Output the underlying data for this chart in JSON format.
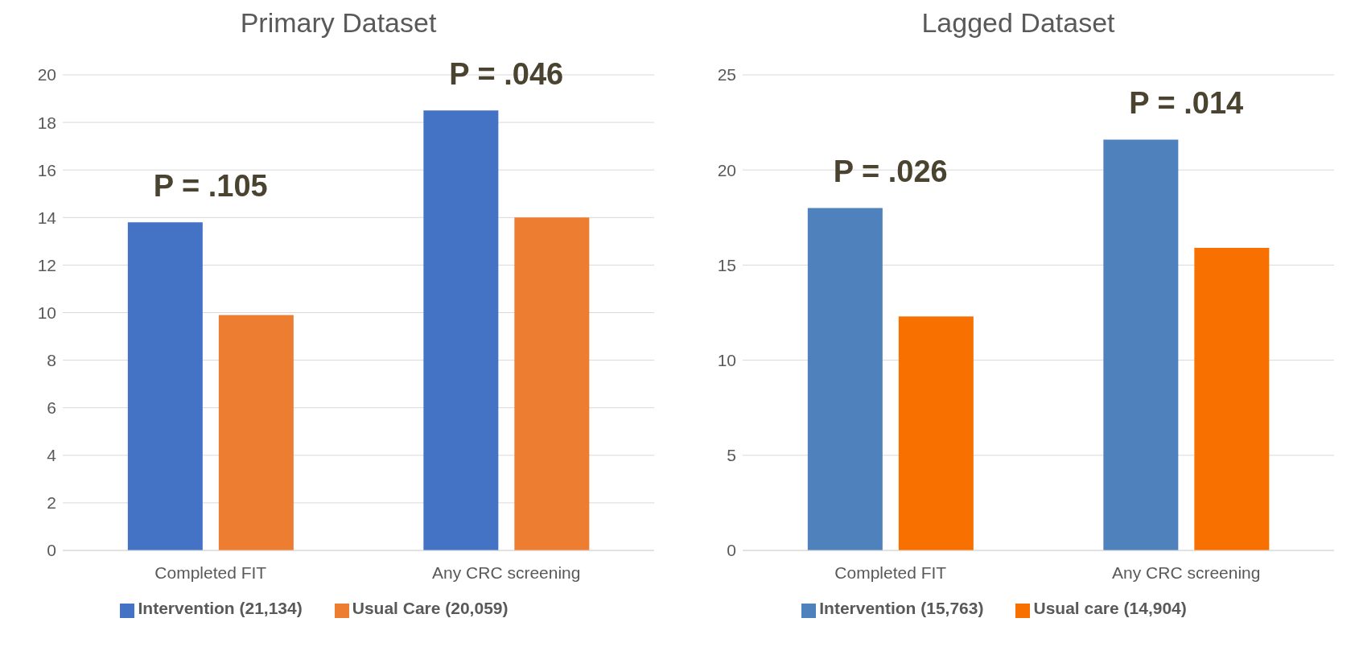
{
  "chart_data": [
    {
      "type": "bar",
      "title": "Primary Dataset",
      "categories": [
        "Completed FIT",
        "Any CRC screening"
      ],
      "series": [
        {
          "name": "Intervention (21,134)",
          "color": "#4472c4",
          "values": [
            13.8,
            18.5
          ]
        },
        {
          "name": "Usual Care (20,059)",
          "color": "#ed7d31",
          "values": [
            9.9,
            14.0
          ]
        }
      ],
      "ylim": [
        0,
        20
      ],
      "yticks": [
        0,
        2,
        4,
        6,
        8,
        10,
        12,
        14,
        16,
        18,
        20
      ],
      "grid": "y",
      "legend": "bottom",
      "annotations": [
        "P = .105",
        "P = .046"
      ]
    },
    {
      "type": "bar",
      "title": "Lagged Dataset",
      "categories": [
        "Completed FIT",
        "Any CRC screening"
      ],
      "series": [
        {
          "name": "Intervention (15,763)",
          "color": "#4f81bd",
          "values": [
            18.0,
            21.6
          ]
        },
        {
          "name": "Usual care (14,904)",
          "color": "#f87000",
          "values": [
            12.3,
            15.9
          ]
        }
      ],
      "ylim": [
        0,
        25
      ],
      "yticks": [
        0,
        5,
        10,
        15,
        20,
        25
      ],
      "grid": "y",
      "legend": "bottom",
      "annotations": [
        "P = .026",
        "P = .014"
      ]
    }
  ]
}
